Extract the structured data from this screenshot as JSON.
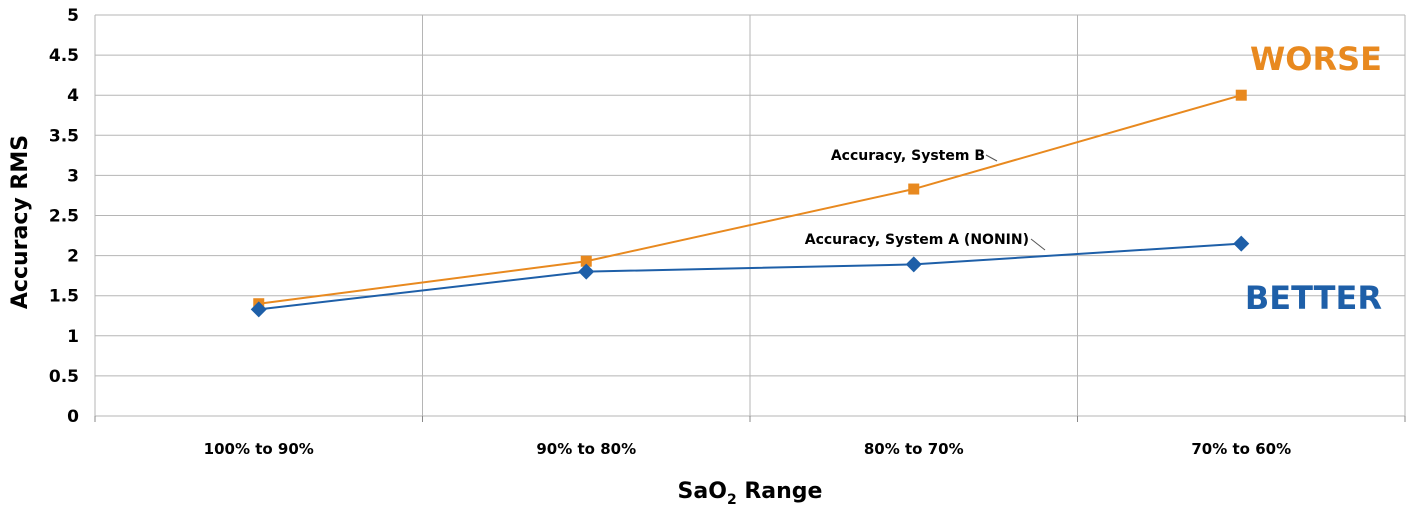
{
  "chart_data": {
    "type": "line",
    "categories": [
      "100% to 90%",
      "90% to 80%",
      "80% to 70%",
      "70% to 60%"
    ],
    "series": [
      {
        "name": "Accuracy, System B",
        "color": "#E8891F",
        "marker": "square",
        "values": [
          1.4,
          1.93,
          2.83,
          4.0
        ]
      },
      {
        "name": "Accuracy, System A (NONIN)",
        "color": "#1E5FA8",
        "marker": "diamond",
        "values": [
          1.33,
          1.8,
          1.89,
          2.15
        ]
      }
    ],
    "ylabel": "Accuracy RMS",
    "xlabel_main": "SaO",
    "xlabel_sub": "2",
    "xlabel_rest": " Range",
    "ylim": [
      0,
      5
    ],
    "yticks": [
      "0",
      "0.5",
      "1",
      "1.5",
      "2",
      "2.5",
      "3",
      "3.5",
      "4",
      "4.5",
      "5"
    ],
    "grid": true,
    "annotations": {
      "worse": "WORSE",
      "better": "BETTER",
      "worse_color": "#E8891F",
      "better_color": "#1E5FA8"
    }
  }
}
